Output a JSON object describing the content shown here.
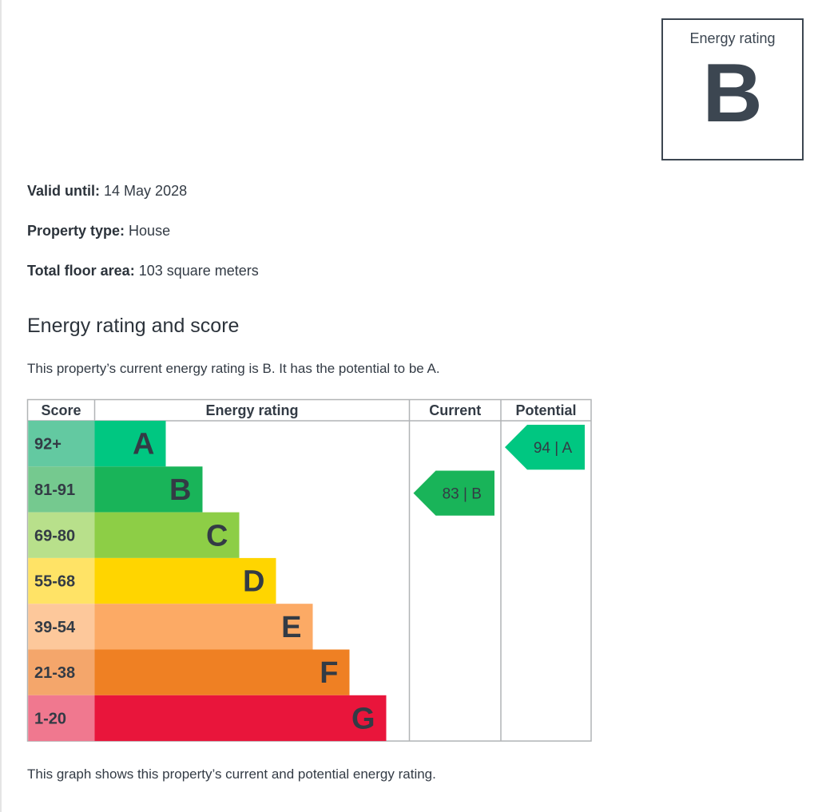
{
  "badge": {
    "label": "Energy rating",
    "value": "B"
  },
  "details": {
    "valid_until_label": "Valid until:",
    "valid_until_value": "14 May 2028",
    "property_type_label": "Property type:",
    "property_type_value": "House",
    "floor_area_label": "Total floor area:",
    "floor_area_value": "103 square meters"
  },
  "section_title": "Energy rating and score",
  "summary": "This property’s current energy rating is B. It has the potential to be A.",
  "footer": "This graph shows this property’s current and potential energy rating.",
  "chart_data": {
    "type": "bar",
    "headers": [
      "Score",
      "Energy rating",
      "Current",
      "Potential"
    ],
    "bands": [
      {
        "letter": "A",
        "range": "92+",
        "color": "#00c781",
        "score_color": "#63c9a1"
      },
      {
        "letter": "B",
        "range": "81-91",
        "color": "#19b459",
        "score_color": "#75c98f"
      },
      {
        "letter": "C",
        "range": "69-80",
        "color": "#8dce46",
        "score_color": "#b8e08b"
      },
      {
        "letter": "D",
        "range": "55-68",
        "color": "#ffd500",
        "score_color": "#ffe366"
      },
      {
        "letter": "E",
        "range": "39-54",
        "color": "#fcaa65",
        "score_color": "#fdc89b"
      },
      {
        "letter": "F",
        "range": "21-38",
        "color": "#ef8023",
        "score_color": "#f4a66b"
      },
      {
        "letter": "G",
        "range": "1-20",
        "color": "#e9153b",
        "score_color": "#f0788f"
      }
    ],
    "current": {
      "score": 83,
      "letter": "B",
      "label": "83 | B",
      "color": "#19b459"
    },
    "potential": {
      "score": 94,
      "letter": "A",
      "label": "94 | A",
      "color": "#00c781"
    },
    "text_color": "#333b45"
  }
}
